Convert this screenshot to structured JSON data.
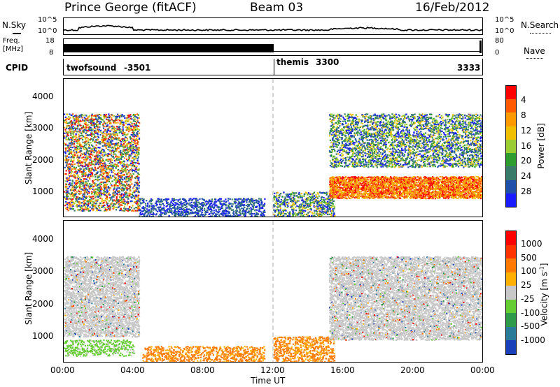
{
  "header": {
    "station": "Prince George (fitACF)",
    "beam": "Beam 03",
    "date": "16/Feb/2012"
  },
  "top_panels": {
    "nsky_label": "N.Sky",
    "nsky_ticks": [
      "10^5",
      "10^0"
    ],
    "nsearch_label": "N.Search",
    "nsearch_ticks": [
      "10^5",
      "10^0"
    ],
    "freq_label": "Freq.",
    "freq_unit": "[MHz]",
    "freq_ticks": [
      "18",
      "8"
    ],
    "nave_label": "Nave",
    "nave_ticks": [
      "80",
      "0"
    ],
    "cpid_label": "CPID",
    "cpid_segments": [
      {
        "name": "twofsound",
        "id": "-3501"
      },
      {
        "name": "themis",
        "id": "3300"
      },
      {
        "name": "",
        "id": "3333"
      }
    ]
  },
  "chart_data": [
    {
      "type": "heatmap",
      "title": "",
      "xlabel": "Time UT",
      "ylabel": "Slant Range [km]",
      "x_ticks": [
        "00:00",
        "04:00",
        "08:00",
        "12:00",
        "16:00",
        "20:00",
        "00:00"
      ],
      "xlim": [
        0,
        24
      ],
      "y_ticks": [
        "1000",
        "2000",
        "3000",
        "4000"
      ],
      "ylim": [
        200,
        4600
      ],
      "colorbar_label": "Power [dB]",
      "colorbar_ticks": [
        "4",
        "8",
        "12",
        "16",
        "20",
        "24",
        "28"
      ],
      "colorbar_colors": [
        "#1a1aff",
        "#1f4fa8",
        "#3a7a6a",
        "#2e9c2e",
        "#9acd32",
        "#f0c000",
        "#ff9900",
        "#ff5a00",
        "#ff0000"
      ],
      "regions": [
        {
          "t0": 0.0,
          "t1": 4.3,
          "r0": 400,
          "r1": 3500,
          "level": "mixed"
        },
        {
          "t0": 4.3,
          "t1": 11.5,
          "r0": 200,
          "r1": 800,
          "level": "low"
        },
        {
          "t0": 12.0,
          "t1": 15.5,
          "r0": 200,
          "r1": 1000,
          "level": "mid"
        },
        {
          "t0": 15.2,
          "t1": 24.0,
          "r0": 800,
          "r1": 1500,
          "level": "high"
        },
        {
          "t0": 15.2,
          "t1": 24.0,
          "r0": 1800,
          "r1": 3500,
          "level": "mid"
        }
      ]
    },
    {
      "type": "heatmap",
      "title": "",
      "xlabel": "Time UT",
      "ylabel": "Slant Range [km]",
      "x_ticks": [
        "00:00",
        "04:00",
        "08:00",
        "12:00",
        "16:00",
        "20:00",
        "00:00"
      ],
      "xlim": [
        0,
        24
      ],
      "y_ticks": [
        "1000",
        "2000",
        "3000",
        "4000"
      ],
      "ylim": [
        200,
        4600
      ],
      "colorbar_label": "Velocity [m s",
      "colorbar_label_sup": "-1",
      "colorbar_label_end": "]",
      "colorbar_ticks": [
        "1000",
        "500",
        "100",
        "25",
        "-25",
        "-100",
        "-500",
        "-1000"
      ],
      "colorbar_colors": [
        "#1a3fb8",
        "#2a7a9a",
        "#2f9a4a",
        "#66cc33",
        "#c8c8c8",
        "#ffb000",
        "#ff7a00",
        "#ff3300",
        "#ff0000"
      ],
      "regions": [
        {
          "t0": 0.0,
          "t1": 4.3,
          "r0": 1000,
          "r1": 3500,
          "level": "ground"
        },
        {
          "t0": 0.0,
          "t1": 4.0,
          "r0": 400,
          "r1": 900,
          "level": "positive"
        },
        {
          "t0": 4.5,
          "t1": 11.5,
          "r0": 200,
          "r1": 700,
          "level": "negative"
        },
        {
          "t0": 12.0,
          "t1": 15.5,
          "r0": 200,
          "r1": 1000,
          "level": "negative"
        },
        {
          "t0": 15.2,
          "t1": 24.0,
          "r0": 900,
          "r1": 3500,
          "level": "ground"
        }
      ]
    }
  ]
}
